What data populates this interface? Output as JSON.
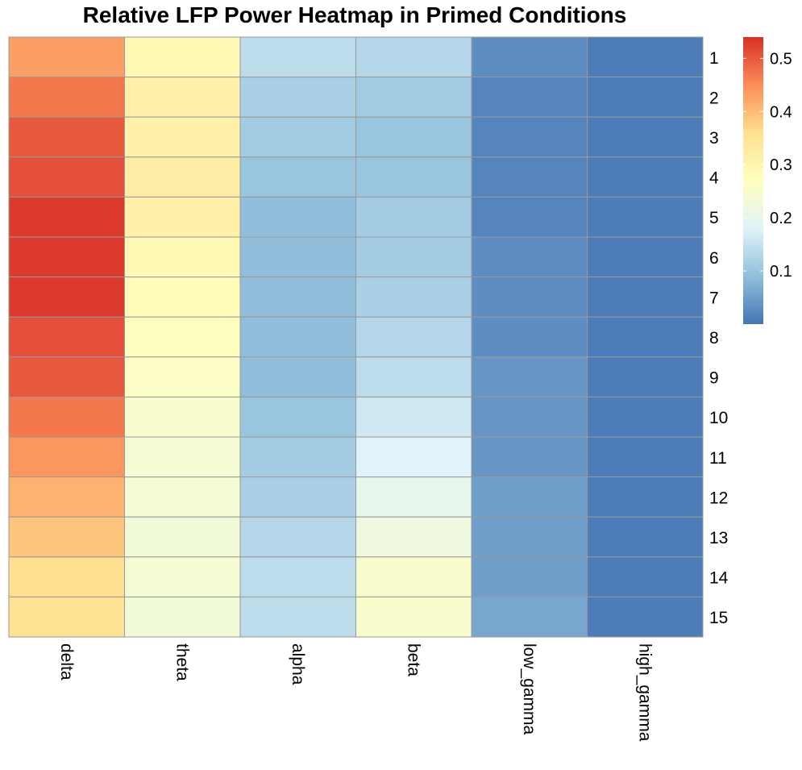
{
  "chart_data": {
    "type": "heatmap",
    "title": "Relative LFP Power Heatmap in Primed Conditions",
    "columns": [
      "delta",
      "theta",
      "alpha",
      "beta",
      "low_gamma",
      "high_gamma"
    ],
    "rows": [
      "1",
      "2",
      "3",
      "4",
      "5",
      "6",
      "7",
      "8",
      "9",
      "10",
      "11",
      "12",
      "13",
      "14",
      "15"
    ],
    "values": [
      [
        0.43,
        0.29,
        0.14,
        0.13,
        0.03,
        0.01
      ],
      [
        0.47,
        0.31,
        0.12,
        0.11,
        0.02,
        0.01
      ],
      [
        0.5,
        0.31,
        0.11,
        0.1,
        0.02,
        0.01
      ],
      [
        0.51,
        0.32,
        0.1,
        0.1,
        0.02,
        0.01
      ],
      [
        0.53,
        0.31,
        0.09,
        0.11,
        0.02,
        0.01
      ],
      [
        0.53,
        0.29,
        0.09,
        0.11,
        0.03,
        0.01
      ],
      [
        0.53,
        0.28,
        0.09,
        0.12,
        0.03,
        0.01
      ],
      [
        0.51,
        0.27,
        0.09,
        0.13,
        0.03,
        0.01
      ],
      [
        0.5,
        0.26,
        0.09,
        0.14,
        0.04,
        0.01
      ],
      [
        0.47,
        0.25,
        0.1,
        0.16,
        0.04,
        0.01
      ],
      [
        0.44,
        0.24,
        0.11,
        0.18,
        0.04,
        0.01
      ],
      [
        0.41,
        0.24,
        0.12,
        0.2,
        0.05,
        0.01
      ],
      [
        0.39,
        0.23,
        0.13,
        0.22,
        0.05,
        0.01
      ],
      [
        0.36,
        0.24,
        0.14,
        0.25,
        0.05,
        0.01
      ],
      [
        0.35,
        0.23,
        0.14,
        0.25,
        0.06,
        0.01
      ]
    ],
    "color_scale": {
      "min": 0.0,
      "max": 0.54,
      "stops": [
        "#4575b4",
        "#91bfdb",
        "#e0f3f8",
        "#ffffbf",
        "#fee090",
        "#fc8d59",
        "#d73027"
      ],
      "ticks": [
        "0.1",
        "0.2",
        "0.3",
        "0.4",
        "0.5"
      ]
    },
    "cell_border_color": "#999999",
    "legend_placement": "right"
  }
}
